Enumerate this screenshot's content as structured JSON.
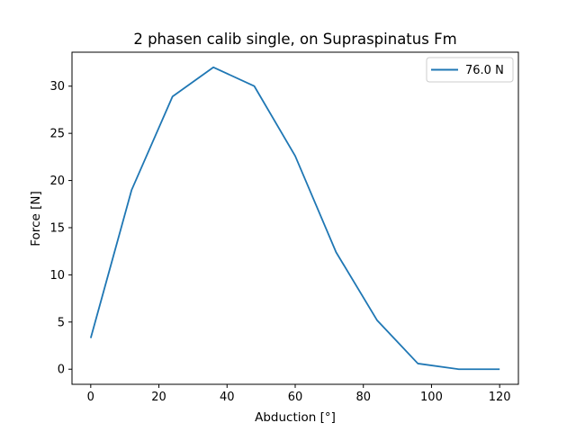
{
  "chart_data": {
    "type": "line",
    "title": "2 phasen calib single, on Supraspinatus Fm",
    "xlabel": "Abduction [°]",
    "ylabel": "Force [N]",
    "xlim": [
      -5.5,
      125.5
    ],
    "ylim": [
      -1.6,
      33.6
    ],
    "xticks": [
      0,
      20,
      40,
      60,
      80,
      100,
      120
    ],
    "yticks": [
      0,
      5,
      10,
      15,
      20,
      25,
      30
    ],
    "grid": false,
    "legend_position": "upper right",
    "series": [
      {
        "name": "76.0 N",
        "color": "#1f77b4",
        "x": [
          0,
          12,
          24,
          36,
          48,
          60,
          72,
          84,
          96,
          108,
          120
        ],
        "y": [
          3.3,
          19.0,
          28.9,
          32.0,
          30.0,
          22.6,
          12.4,
          5.2,
          0.6,
          0.0,
          0.0
        ]
      }
    ]
  }
}
